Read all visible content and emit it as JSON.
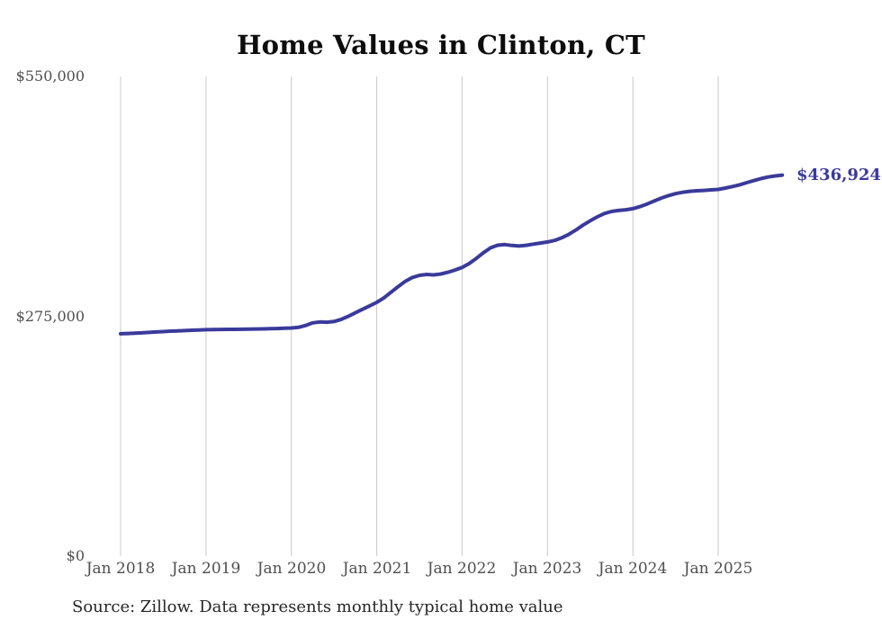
{
  "title": "Home Values in Clinton, CT",
  "source_note": "Source: Zillow. Data represents monthly typical home value",
  "colors": {
    "line": "#3a3a9b",
    "end_label_text": "#3a3a9b",
    "gridline": "#c9c9c9",
    "axis_text": "#4f4f4f",
    "title_text": "#0d0d0d",
    "source_text": "#262626",
    "background": "#ffffff"
  },
  "chart_data": {
    "type": "line",
    "title": "Home Values in Clinton, CT",
    "series_name": "Monthly typical home value",
    "xlabel": "",
    "ylabel": "",
    "ylim": [
      0,
      550000
    ],
    "grid": "vertical-only",
    "legend": "none",
    "end_annotation": "$436,924",
    "y_ticks": [
      {
        "value": 0,
        "label": "$0"
      },
      {
        "value": 275000,
        "label": "$275,000"
      },
      {
        "value": 550000,
        "label": "$550,000"
      }
    ],
    "x_ticks": [
      {
        "label": "Jan 2018",
        "month_index": 0
      },
      {
        "label": "Jan 2019",
        "month_index": 12
      },
      {
        "label": "Jan 2020",
        "month_index": 24
      },
      {
        "label": "Jan 2021",
        "month_index": 36
      },
      {
        "label": "Jan 2022",
        "month_index": 48
      },
      {
        "label": "Jan 2023",
        "month_index": 60
      },
      {
        "label": "Jan 2024",
        "month_index": 72
      },
      {
        "label": "Jan 2025",
        "month_index": 84
      }
    ],
    "x": [
      "2018-01",
      "2018-02",
      "2018-03",
      "2018-04",
      "2018-05",
      "2018-06",
      "2018-07",
      "2018-08",
      "2018-09",
      "2018-10",
      "2018-11",
      "2018-12",
      "2019-01",
      "2019-02",
      "2019-03",
      "2019-04",
      "2019-05",
      "2019-06",
      "2019-07",
      "2019-08",
      "2019-09",
      "2019-10",
      "2019-11",
      "2019-12",
      "2020-01",
      "2020-02",
      "2020-03",
      "2020-04",
      "2020-05",
      "2020-06",
      "2020-07",
      "2020-08",
      "2020-09",
      "2020-10",
      "2020-11",
      "2020-12",
      "2021-01",
      "2021-02",
      "2021-03",
      "2021-04",
      "2021-05",
      "2021-06",
      "2021-07",
      "2021-08",
      "2021-09",
      "2021-10",
      "2021-11",
      "2021-12",
      "2022-01",
      "2022-02",
      "2022-03",
      "2022-04",
      "2022-05",
      "2022-06",
      "2022-07",
      "2022-08",
      "2022-09",
      "2022-10",
      "2022-11",
      "2022-12",
      "2023-01",
      "2023-02",
      "2023-03",
      "2023-04",
      "2023-05",
      "2023-06",
      "2023-07",
      "2023-08",
      "2023-09",
      "2023-10",
      "2023-11",
      "2023-12",
      "2024-01",
      "2024-02",
      "2024-03",
      "2024-04",
      "2024-05",
      "2024-06",
      "2024-07",
      "2024-08",
      "2024-09",
      "2024-10",
      "2024-11",
      "2024-12",
      "2025-01",
      "2025-02",
      "2025-03",
      "2025-04",
      "2025-05",
      "2025-06",
      "2025-07",
      "2025-08",
      "2025-09",
      "2025-10"
    ],
    "values": [
      255000,
      255300,
      255700,
      256000,
      256500,
      257000,
      257500,
      258000,
      258300,
      258600,
      259000,
      259300,
      259600,
      259800,
      259900,
      260000,
      260000,
      260100,
      260200,
      260400,
      260600,
      260800,
      261000,
      261300,
      261600,
      262300,
      264500,
      267500,
      268500,
      268200,
      269000,
      271500,
      275000,
      279000,
      283000,
      287000,
      291000,
      296000,
      302500,
      309000,
      315000,
      319500,
      322000,
      323000,
      322500,
      323500,
      325500,
      328000,
      331000,
      335500,
      341500,
      348000,
      353500,
      356500,
      357200,
      356200,
      355600,
      356400,
      357800,
      359000,
      360200,
      362000,
      365000,
      369000,
      374000,
      379500,
      384500,
      389000,
      392800,
      395200,
      396400,
      397200,
      398400,
      400800,
      403800,
      407200,
      410600,
      413400,
      415600,
      417200,
      418300,
      418900,
      419400,
      420000,
      420500,
      422000,
      423800,
      425800,
      428200,
      430600,
      432900,
      434700,
      436000,
      436924
    ]
  }
}
